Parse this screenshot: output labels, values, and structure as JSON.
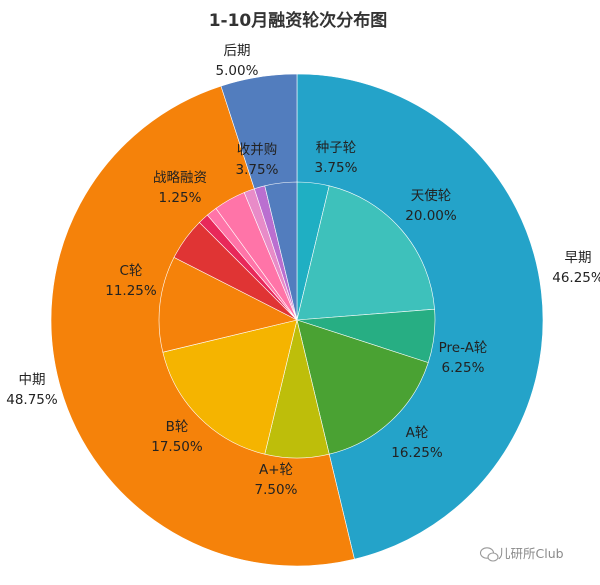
{
  "chart_data": {
    "type": "pie",
    "title": "1-10月融资轮次分布图",
    "outer": {
      "slices": [
        {
          "label": "早期",
          "percent_text": "46.25%",
          "value": 46.25,
          "color": "#24A3C9"
        },
        {
          "label": "中期",
          "percent_text": "48.75%",
          "value": 48.75,
          "color": "#F5820A"
        },
        {
          "label": "后期",
          "percent_text": "5.00%",
          "value": 5.0,
          "color": "#527DBE"
        }
      ]
    },
    "inner": {
      "slices": [
        {
          "label": "种子轮",
          "percent_text": "3.75%",
          "value": 3.75,
          "color": "#1FAFC3"
        },
        {
          "label": "天使轮",
          "percent_text": "20.00%",
          "value": 20.0,
          "color": "#3EC1BB"
        },
        {
          "label": "Pre-A轮",
          "percent_text": "6.25%",
          "value": 6.25,
          "color": "#27AE83"
        },
        {
          "label": "A轮",
          "percent_text": "16.25%",
          "value": 16.25,
          "color": "#4AA233"
        },
        {
          "label": "A+轮",
          "percent_text": "7.50%",
          "value": 7.5,
          "color": "#BEBE0A"
        },
        {
          "label": "B轮",
          "percent_text": "17.50%",
          "value": 17.5,
          "color": "#F5B400"
        },
        {
          "label": "C轮",
          "percent_text": "11.25%",
          "value": 11.25,
          "color": "#F5820A"
        },
        {
          "label": "",
          "percent_text": "",
          "value": 5.0,
          "color": "#E03434"
        },
        {
          "label": "",
          "percent_text": "",
          "value": 1.25,
          "color": "#E8285A"
        },
        {
          "label": "战略融资",
          "percent_text": "1.25%",
          "value": 1.25,
          "color": "#FF74A8"
        },
        {
          "label": "",
          "percent_text": "",
          "value": 3.75,
          "color": "#FF74A8"
        },
        {
          "label": "",
          "percent_text": "",
          "value": 1.25,
          "color": "#E88BC8"
        },
        {
          "label": "",
          "percent_text": "",
          "value": 1.25,
          "color": "#BA6FD0"
        },
        {
          "label": "收并购",
          "percent_text": "3.75%",
          "value": 3.75,
          "color": "#527DBE"
        }
      ]
    }
  },
  "watermark": {
    "text": "儿研所Club",
    "icon": "wechat-icon"
  }
}
